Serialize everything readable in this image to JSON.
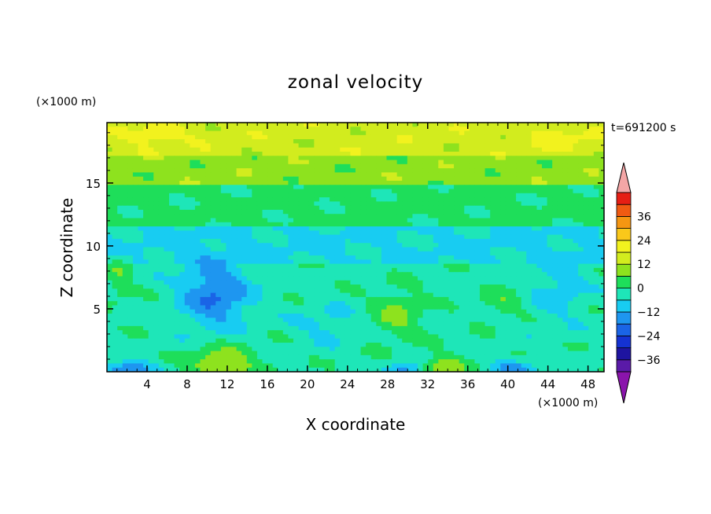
{
  "chart_data": {
    "type": "heatmap",
    "title": "zonal velocity",
    "xlabel": "X coordinate",
    "ylabel": "Z coordinate",
    "x_unit": "(×1000 m)",
    "y_unit": "(×1000 m)",
    "time_label": "t=691200 s",
    "xlim": [
      0,
      49.6
    ],
    "ylim": [
      0,
      19.8
    ],
    "x_ticks": [
      4,
      8,
      12,
      16,
      20,
      24,
      28,
      32,
      36,
      40,
      44,
      48
    ],
    "y_ticks": [
      5,
      10,
      15
    ],
    "colorbar": {
      "levels": [
        -42,
        -36,
        -30,
        -24,
        -18,
        -12,
        -6,
        0,
        6,
        12,
        18,
        24,
        30,
        36,
        42
      ],
      "labels": [
        -36,
        -24,
        -12,
        0,
        12,
        24,
        36
      ],
      "colors": [
        "#5a1aa8",
        "#1e14a0",
        "#1432d2",
        "#1a64e6",
        "#1e96f0",
        "#18ccf2",
        "#1ee6b8",
        "#1ede5a",
        "#8ee21e",
        "#d2ec1e",
        "#f2f21e",
        "#fac81a",
        "#f59612",
        "#f05a12",
        "#e61e14"
      ],
      "under_color": "#8a14ac",
      "over_color": "#f4a6a6"
    },
    "field": {
      "features": [
        {
          "type": "band",
          "y_from": 17.2,
          "y_to": 19.8,
          "value": 15
        },
        {
          "type": "band",
          "y_from": 15.0,
          "y_to": 17.2,
          "value": 9
        },
        {
          "type": "band",
          "y_from": 11.5,
          "y_to": 15.0,
          "value": 2
        },
        {
          "type": "band",
          "y_from": 8.5,
          "y_to": 11.5,
          "value": -7
        },
        {
          "type": "band",
          "y_from": 0,
          "y_to": 8.5,
          "value": -2
        },
        {
          "type": "blob",
          "x": 10.8,
          "y": 6.2,
          "rx": 3.6,
          "ry": 2.8,
          "value": -19
        },
        {
          "type": "blob",
          "x": 22.0,
          "y": 3.8,
          "rx": 3.4,
          "ry": 1.6,
          "value": -8
        },
        {
          "type": "blob",
          "x": 29.0,
          "y": 4.5,
          "rx": 2.6,
          "ry": 2.0,
          "value": 7
        },
        {
          "type": "blob",
          "x": 45.0,
          "y": 6.8,
          "rx": 3.0,
          "ry": 3.2,
          "value": -9
        },
        {
          "type": "blob",
          "x": 39.5,
          "y": 5.5,
          "rx": 2.0,
          "ry": 1.2,
          "value": 4
        },
        {
          "type": "blob",
          "x": 11.5,
          "y": 0.6,
          "rx": 3.5,
          "ry": 1.4,
          "value": 12
        },
        {
          "type": "blob",
          "x": 33.5,
          "y": 0.4,
          "rx": 2.5,
          "ry": 0.9,
          "value": 10
        },
        {
          "type": "blob",
          "x": 2.0,
          "y": 0.2,
          "rx": 2.8,
          "ry": 0.6,
          "value": -20
        },
        {
          "type": "blob",
          "x": 29.5,
          "y": 0.2,
          "rx": 1.6,
          "ry": 0.5,
          "value": -16
        },
        {
          "type": "blob",
          "x": 40.5,
          "y": 0.3,
          "rx": 2.5,
          "ry": 0.7,
          "value": -14
        },
        {
          "type": "blob",
          "x": 5.0,
          "y": 18.8,
          "rx": 3.0,
          "ry": 1.0,
          "value": 22
        },
        {
          "type": "blob",
          "x": 45.0,
          "y": 18.6,
          "rx": 3.5,
          "ry": 1.0,
          "value": 21
        },
        {
          "type": "blob",
          "x": 1.2,
          "y": 7.5,
          "rx": 1.4,
          "ry": 2.0,
          "value": 4
        }
      ]
    }
  }
}
